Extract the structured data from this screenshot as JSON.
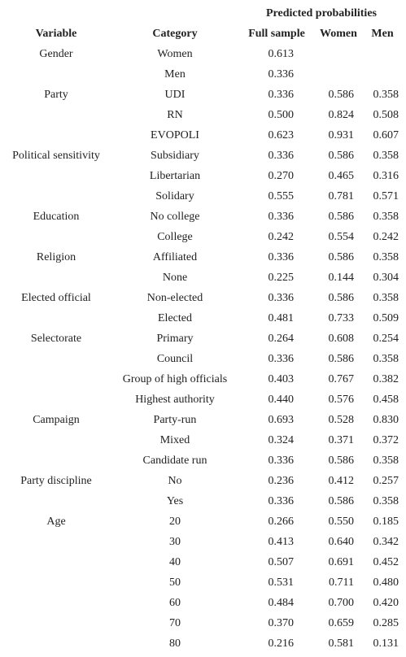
{
  "table": {
    "group_header": "Predicted probabilities",
    "headers": {
      "variable": "Variable",
      "category": "Category",
      "full": "Full sample",
      "women": "Women",
      "men": "Men"
    },
    "rows": [
      {
        "variable": "Gender",
        "category": "Women",
        "full": "0.613"
      },
      {
        "category": "Men",
        "full": "0.336"
      },
      {
        "variable": "Party",
        "category": "UDI",
        "full": "0.336",
        "women": "0.586",
        "men": "0.358"
      },
      {
        "category": "RN",
        "full": "0.500",
        "women": "0.824",
        "men": "0.508"
      },
      {
        "category": "EVOPOLI",
        "full": "0.623",
        "women": "0.931",
        "men": "0.607"
      },
      {
        "variable": "Political sensitivity",
        "category": "Subsidiary",
        "full": "0.336",
        "women": "0.586",
        "men": "0.358"
      },
      {
        "category": "Libertarian",
        "full": "0.270",
        "women": "0.465",
        "men": "0.316"
      },
      {
        "category": "Solidary",
        "full": "0.555",
        "women": "0.781",
        "men": "0.571"
      },
      {
        "variable": "Education",
        "category": "No college",
        "full": "0.336",
        "women": "0.586",
        "men": "0.358"
      },
      {
        "category": "College",
        "full": "0.242",
        "women": "0.554",
        "men": "0.242"
      },
      {
        "variable": "Religion",
        "category": "Affiliated",
        "full": "0.336",
        "women": "0.586",
        "men": "0.358"
      },
      {
        "category": "None",
        "full": "0.225",
        "women": "0.144",
        "men": "0.304"
      },
      {
        "variable": "Elected official",
        "category": "Non-elected",
        "full": "0.336",
        "women": "0.586",
        "men": "0.358"
      },
      {
        "category": "Elected",
        "full": "0.481",
        "women": "0.733",
        "men": "0.509"
      },
      {
        "variable": "Selectorate",
        "category": "Primary",
        "full": "0.264",
        "women": "0.608",
        "men": "0.254"
      },
      {
        "category": "Council",
        "full": "0.336",
        "women": "0.586",
        "men": "0.358"
      },
      {
        "category": "Group of high officials",
        "full": "0.403",
        "women": "0.767",
        "men": "0.382"
      },
      {
        "category": "Highest authority",
        "full": "0.440",
        "women": "0.576",
        "men": "0.458"
      },
      {
        "variable": "Campaign",
        "category": "Party-run",
        "full": "0.693",
        "women": "0.528",
        "men": "0.830"
      },
      {
        "category": "Mixed",
        "full": "0.324",
        "women": "0.371",
        "men": "0.372"
      },
      {
        "category": "Candidate run",
        "full": "0.336",
        "women": "0.586",
        "men": "0.358"
      },
      {
        "variable": "Party discipline",
        "category": "No",
        "full": "0.236",
        "women": "0.412",
        "men": "0.257"
      },
      {
        "category": "Yes",
        "full": "0.336",
        "women": "0.586",
        "men": "0.358"
      },
      {
        "variable": "Age",
        "category": "20",
        "full": "0.266",
        "women": "0.550",
        "men": "0.185"
      },
      {
        "category": "30",
        "full": "0.413",
        "women": "0.640",
        "men": "0.342"
      },
      {
        "category": "40",
        "full": "0.507",
        "women": "0.691",
        "men": "0.452"
      },
      {
        "category": "50",
        "full": "0.531",
        "women": "0.711",
        "men": "0.480"
      },
      {
        "category": "60",
        "full": "0.484",
        "women": "0.700",
        "men": "0.420"
      },
      {
        "category": "70",
        "full": "0.370",
        "women": "0.659",
        "men": "0.285"
      },
      {
        "category": "80",
        "full": "0.216",
        "women": "0.581",
        "men": "0.131"
      }
    ]
  }
}
